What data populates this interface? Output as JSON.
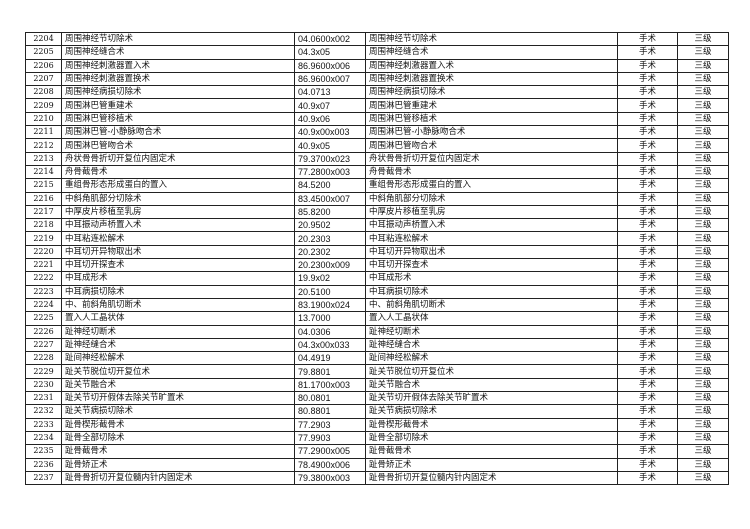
{
  "rows": [
    [
      "2204",
      "周围神经节切除术",
      "04.0600x002",
      "周围神经节切除术",
      "手术",
      "三级"
    ],
    [
      "2205",
      "周围神经缝合术",
      "04.3x05",
      "周围神经缝合术",
      "手术",
      "三级"
    ],
    [
      "2206",
      "周围神经刺激器置入术",
      "86.9600x006",
      "周围神经刺激器置入术",
      "手术",
      "三级"
    ],
    [
      "2207",
      "周围神经刺激器置换术",
      "86.9600x007",
      "周围神经刺激器置换术",
      "手术",
      "三级"
    ],
    [
      "2208",
      "周围神经病损切除术",
      "04.0713",
      "周围神经病损切除术",
      "手术",
      "三级"
    ],
    [
      "2209",
      "周围淋巴管重建术",
      "40.9x07",
      "周围淋巴管重建术",
      "手术",
      "三级"
    ],
    [
      "2210",
      "周围淋巴管移植术",
      "40.9x06",
      "周围淋巴管移植术",
      "手术",
      "三级"
    ],
    [
      "2211",
      "周围淋巴管-小静脉吻合术",
      "40.9x00x003",
      "周围淋巴管-小静脉吻合术",
      "手术",
      "三级"
    ],
    [
      "2212",
      "周围淋巴管吻合术",
      "40.9x05",
      "周围淋巴管吻合术",
      "手术",
      "三级"
    ],
    [
      "2213",
      "舟状骨骨折切开复位内固定术",
      "79.3700x023",
      "舟状骨骨折切开复位内固定术",
      "手术",
      "三级"
    ],
    [
      "2214",
      "舟骨截骨术",
      "77.2800x003",
      "舟骨截骨术",
      "手术",
      "三级"
    ],
    [
      "2215",
      "重组骨形态形成蛋白的置入",
      "84.5200",
      "重组骨形态形成蛋白的置入",
      "手术",
      "三级"
    ],
    [
      "2216",
      "中斜角肌部分切除术",
      "83.4500x007",
      "中斜角肌部分切除术",
      "手术",
      "三级"
    ],
    [
      "2217",
      "中厚皮片移植至乳房",
      "85.8200",
      "中厚皮片移植至乳房",
      "手术",
      "三级"
    ],
    [
      "2218",
      "中耳振动声桥置入术",
      "20.9502",
      "中耳振动声桥置入术",
      "手术",
      "三级"
    ],
    [
      "2219",
      "中耳粘连松解术",
      "20.2303",
      "中耳粘连松解术",
      "手术",
      "三级"
    ],
    [
      "2220",
      "中耳切开异物取出术",
      "20.2302",
      "中耳切开异物取出术",
      "手术",
      "三级"
    ],
    [
      "2221",
      "中耳切开探查术",
      "20.2300x009",
      "中耳切开探查术",
      "手术",
      "三级"
    ],
    [
      "2222",
      "中耳成形术",
      "19.9x02",
      "中耳成形术",
      "手术",
      "三级"
    ],
    [
      "2223",
      "中耳病损切除术",
      "20.5100",
      "中耳病损切除术",
      "手术",
      "三级"
    ],
    [
      "2224",
      "中、前斜角肌切断术",
      "83.1900x024",
      "中、前斜角肌切断术",
      "手术",
      "三级"
    ],
    [
      "2225",
      "置入人工晶状体",
      "13.7000",
      "置入人工晶状体",
      "手术",
      "三级"
    ],
    [
      "2226",
      "趾神经切断术",
      "04.0306",
      "趾神经切断术",
      "手术",
      "三级"
    ],
    [
      "2227",
      "趾神经缝合术",
      "04.3x00x033",
      "趾神经缝合术",
      "手术",
      "三级"
    ],
    [
      "2228",
      "趾间神经松解术",
      "04.4919",
      "趾间神经松解术",
      "手术",
      "三级"
    ],
    [
      "2229",
      "趾关节脱位切开复位术",
      "79.8801",
      "趾关节脱位切开复位术",
      "手术",
      "三级"
    ],
    [
      "2230",
      "趾关节融合术",
      "81.1700x003",
      "趾关节融合术",
      "手术",
      "三级"
    ],
    [
      "2231",
      "趾关节切开假体去除关节旷置术",
      "80.0801",
      "趾关节切开假体去除关节旷置术",
      "手术",
      "三级"
    ],
    [
      "2232",
      "趾关节病损切除术",
      "80.8801",
      "趾关节病损切除术",
      "手术",
      "三级"
    ],
    [
      "2233",
      "趾骨楔形截骨术",
      "77.2903",
      "趾骨楔形截骨术",
      "手术",
      "三级"
    ],
    [
      "2234",
      "趾骨全部切除术",
      "77.9903",
      "趾骨全部切除术",
      "手术",
      "三级"
    ],
    [
      "2235",
      "趾骨截骨术",
      "77.2900x005",
      "趾骨截骨术",
      "手术",
      "三级"
    ],
    [
      "2236",
      "趾骨矫正术",
      "78.4900x006",
      "趾骨矫正术",
      "手术",
      "三级"
    ],
    [
      "2237",
      "趾骨骨折切开复位髓内针内固定术",
      "79.3800x003",
      "趾骨骨折切开复位髓内针内固定术",
      "手术",
      "三级"
    ]
  ]
}
